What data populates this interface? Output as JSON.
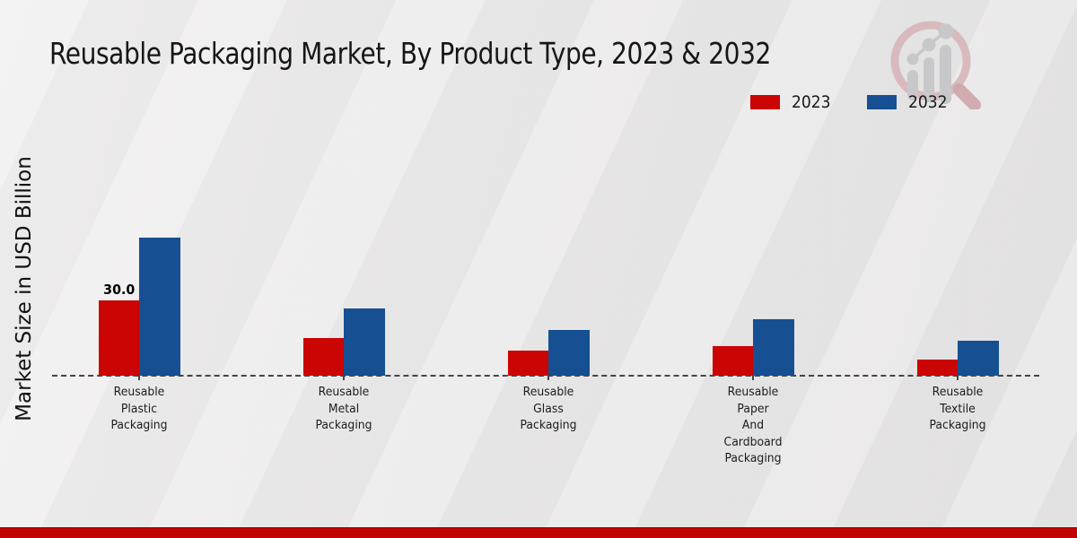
{
  "title": "Reusable Packaging Market, By Product Type, 2023 & 2032",
  "y_axis_label": "Market Size in USD Billion",
  "legend": {
    "items": [
      {
        "label": "2023",
        "color": "#cb0404"
      },
      {
        "label": "2032",
        "color": "#164f92"
      }
    ]
  },
  "logo": {
    "name": "market-research-future-watermark"
  },
  "footer": {
    "stripe_color": "#c10505"
  },
  "chart_data": {
    "type": "bar",
    "title": "Reusable Packaging Market, By Product Type, 2023 & 2032",
    "ylabel": "Market Size in USD Billion",
    "xlabel": "",
    "categories": [
      "Reusable\nPlastic\nPackaging",
      "Reusable\nMetal\nPackaging",
      "Reusable\nGlass\nPackaging",
      "Reusable\nPaper\nAnd\nCardboard\nPackaging",
      "Reusable\nTextile\nPackaging"
    ],
    "series": [
      {
        "name": "2023",
        "color": "#cb0404",
        "values": [
          30.0,
          15.0,
          10.0,
          12.0,
          6.5
        ]
      },
      {
        "name": "2032",
        "color": "#164f92",
        "values": [
          55.0,
          27.0,
          18.5,
          22.5,
          14.0
        ]
      }
    ],
    "annotations": [
      {
        "series": "2023",
        "category_index": 0,
        "text": "30.0"
      }
    ],
    "ylim": [
      0,
      60
    ],
    "grid": false,
    "baseline_style": "dashed",
    "legend_position": "top-right"
  }
}
